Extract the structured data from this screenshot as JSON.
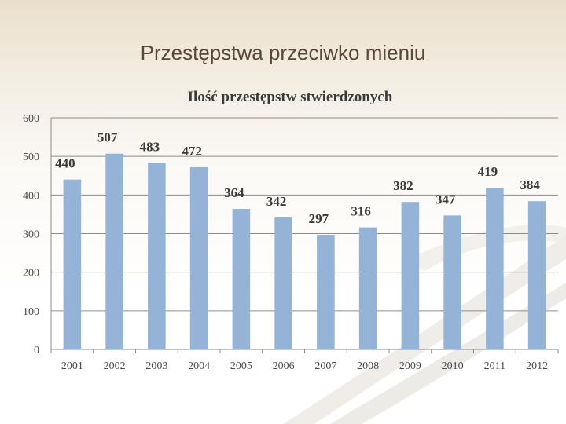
{
  "slide": {
    "title": "Przestępstwa przeciwko mieniu"
  },
  "chart_data": {
    "type": "bar",
    "title": "Ilość przestępstw stwierdzonych",
    "categories": [
      "2001",
      "2002",
      "2003",
      "2004",
      "2005",
      "2006",
      "2007",
      "2008",
      "2009",
      "2010",
      "2011",
      "2012"
    ],
    "values": [
      440,
      507,
      483,
      472,
      364,
      342,
      297,
      316,
      382,
      347,
      419,
      384
    ],
    "ylim": [
      0,
      600
    ],
    "yticks": [
      0,
      100,
      200,
      300,
      400,
      500,
      600
    ],
    "grid": true,
    "legend": "none",
    "bar_color": "#95b3d7",
    "grid_color": "#8c8c8c"
  }
}
